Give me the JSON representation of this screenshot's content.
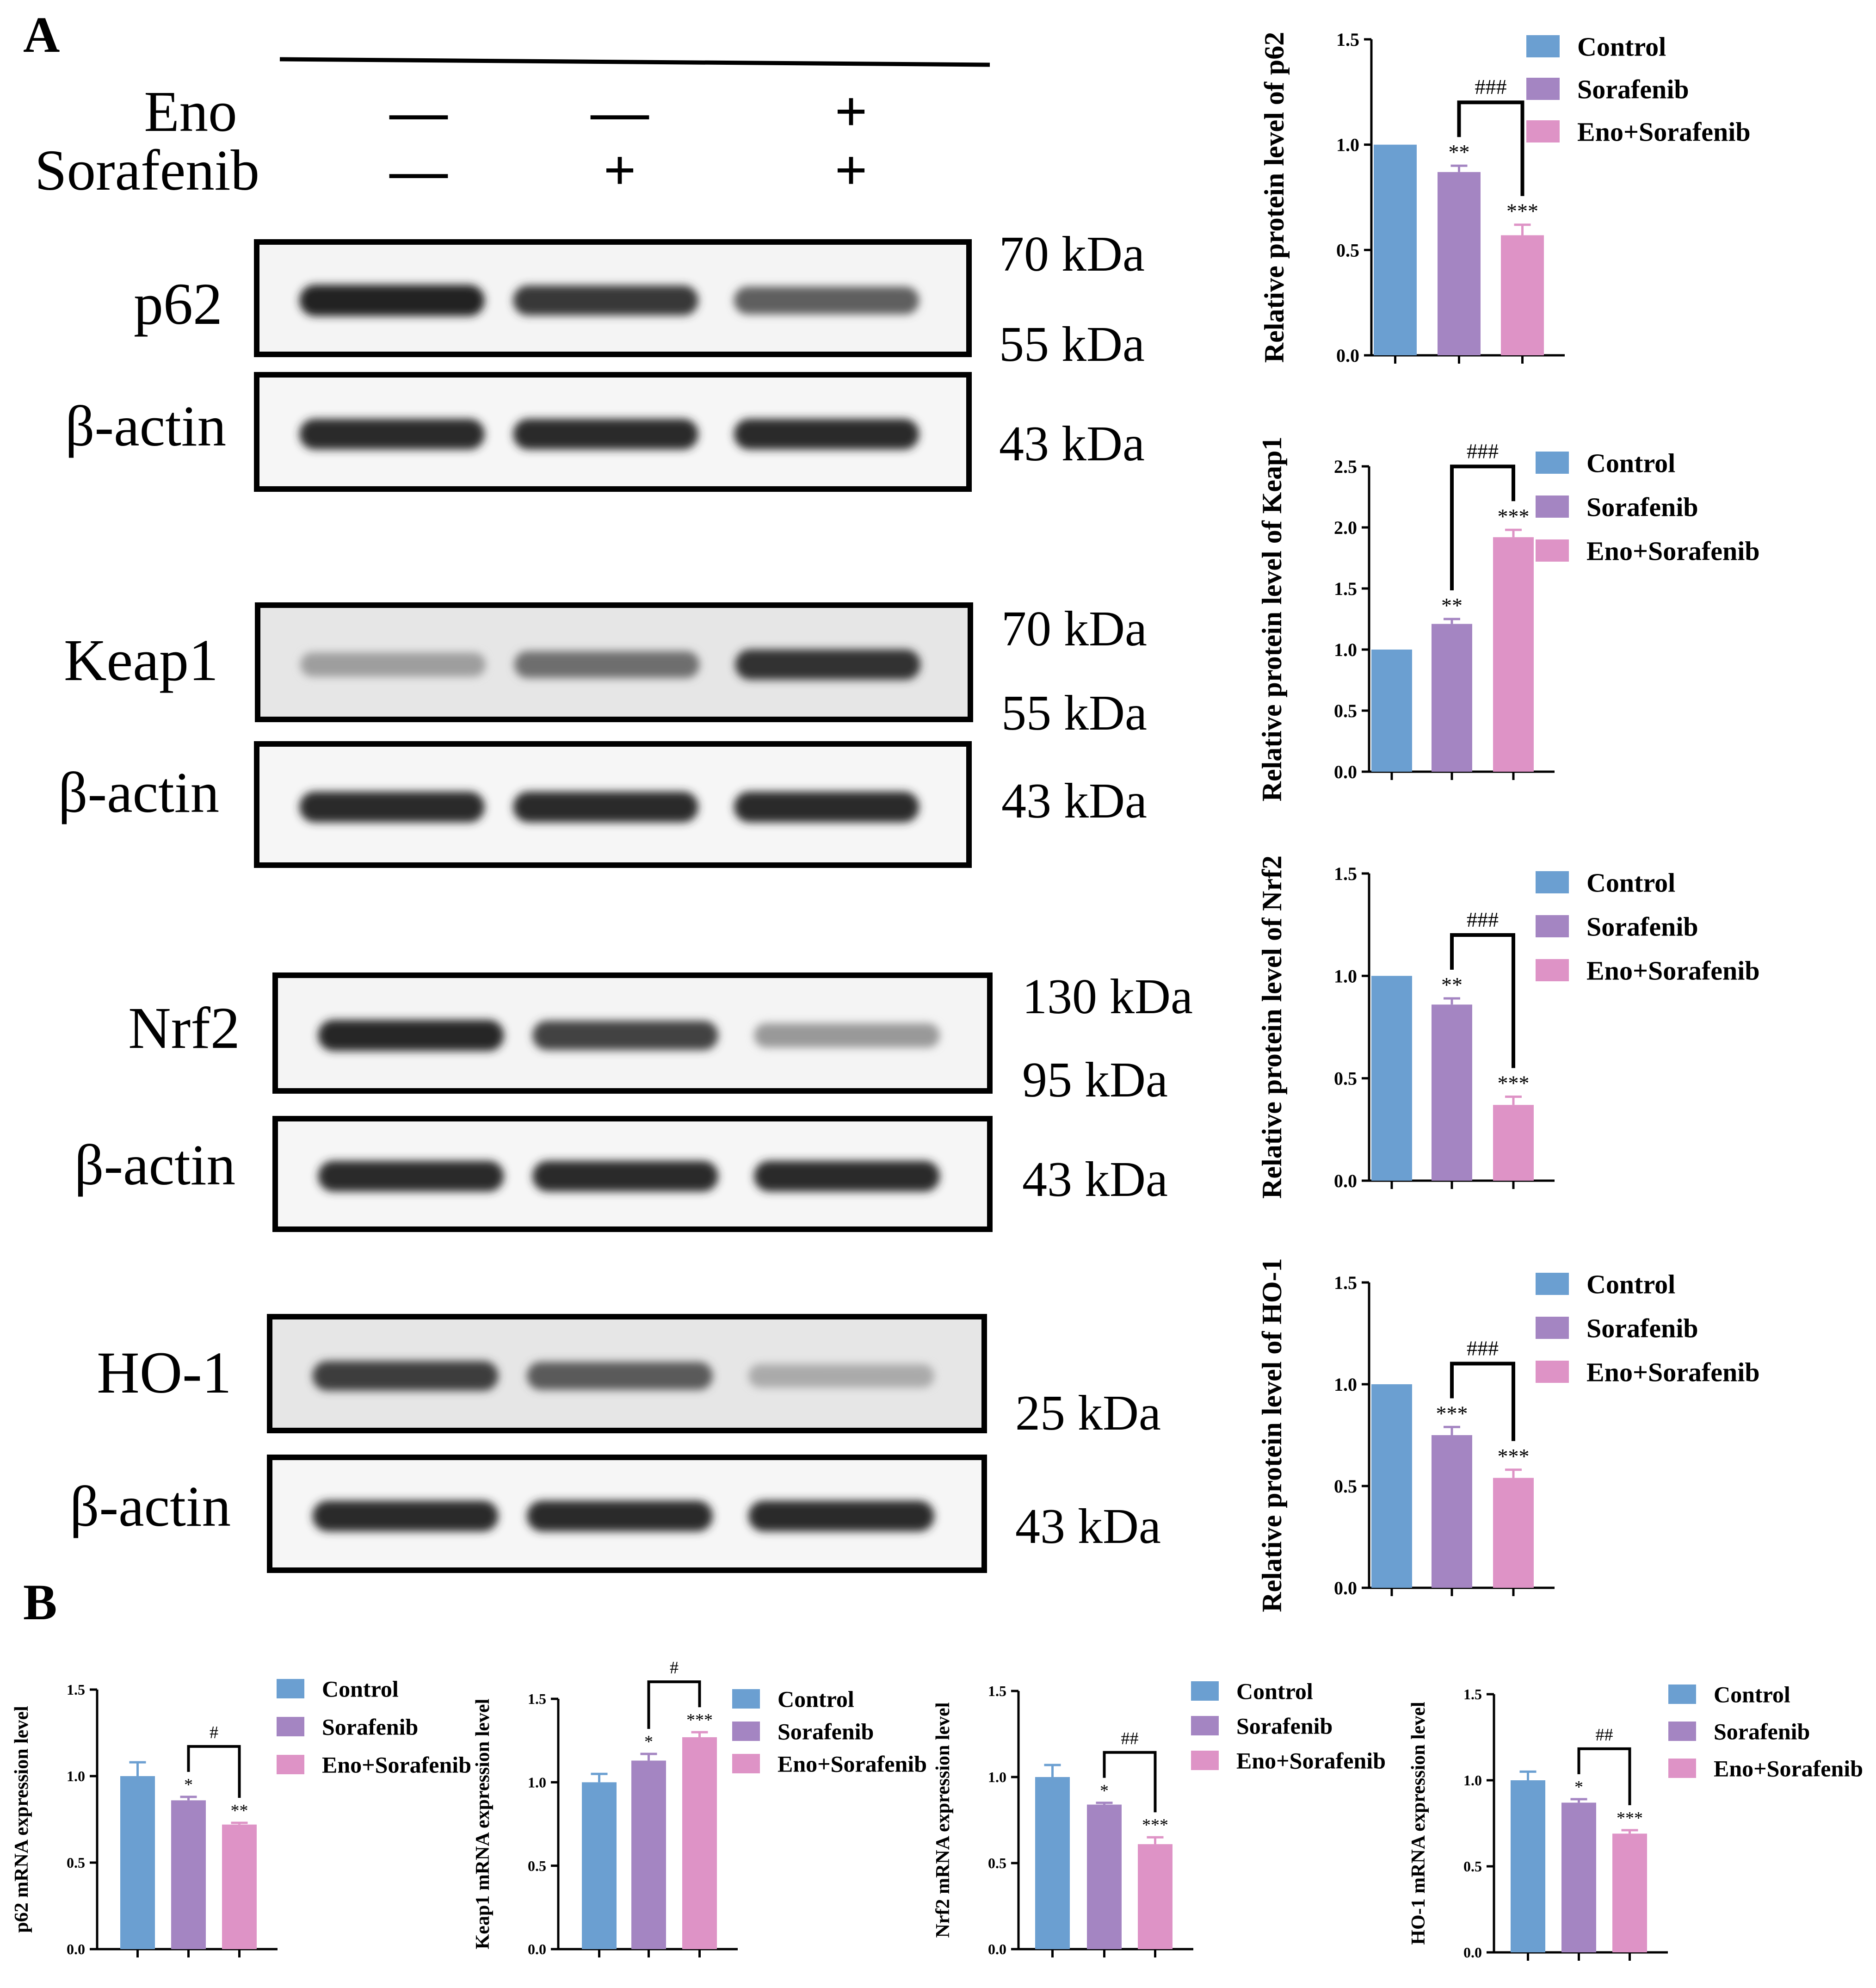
{
  "panels": {
    "A": "A",
    "B": "B"
  },
  "treatment": {
    "row_labels": [
      "Eno",
      "Sorafenib"
    ],
    "rows": [
      [
        "—",
        "—",
        "+"
      ],
      [
        "—",
        "+",
        "+"
      ]
    ]
  },
  "blots": [
    {
      "label": "p62",
      "markers": [
        "70 kDa",
        "55 kDa"
      ],
      "loading": "β-actin",
      "loading_marker": "43 kDa",
      "band_intensity": [
        0.92,
        0.82,
        0.66
      ]
    },
    {
      "label": "Keap1",
      "markers": [
        "70 kDa",
        "55 kDa"
      ],
      "loading": "β-actin",
      "loading_marker": "43 kDa",
      "band_intensity": [
        0.4,
        0.6,
        0.85
      ]
    },
    {
      "label": "Nrf2",
      "markers": [
        "130 kDa",
        "95 kDa"
      ],
      "loading": "β-actin",
      "loading_marker": "43 kDa",
      "band_intensity": [
        0.9,
        0.78,
        0.42
      ]
    },
    {
      "label": "HO-1",
      "markers": [
        "25 kDa"
      ],
      "loading": "β-actin",
      "loading_marker": "43 kDa",
      "band_intensity": [
        0.8,
        0.68,
        0.35
      ]
    }
  ],
  "legend": [
    "Control",
    "Sorafenib",
    "Eno+Sorafenib"
  ],
  "colors": {
    "Control": "#6b9fd1",
    "Sorafenib": "#a485c2",
    "Eno+Sorafenib": "#de93c6"
  },
  "chart_data": [
    {
      "type": "bar",
      "panel": "A",
      "categories": [
        "Control",
        "Sorafenib",
        "Eno+Sorafenib"
      ],
      "values": [
        1.0,
        0.87,
        0.57
      ],
      "errors": [
        0,
        0.03,
        0.05
      ],
      "stars": [
        "",
        "**",
        "***"
      ],
      "comparison": "###",
      "compare": [
        1,
        2
      ],
      "ylabel": "Relative protein level of p62",
      "ylim": [
        0,
        1.5
      ],
      "yticks": [
        "0.0",
        "0.5",
        "1.0",
        "1.5"
      ],
      "legend": "top-right"
    },
    {
      "type": "bar",
      "panel": "A",
      "categories": [
        "Control",
        "Sorafenib",
        "Eno+Sorafenib"
      ],
      "values": [
        1.0,
        1.21,
        1.92
      ],
      "errors": [
        0,
        0.04,
        0.06
      ],
      "stars": [
        "",
        "**",
        "***"
      ],
      "comparison": "###",
      "compare": [
        1,
        2
      ],
      "ylabel": "Relative protein level of Keap1",
      "ylim": [
        0,
        2.5
      ],
      "yticks": [
        "0.0",
        "0.5",
        "1.0",
        "1.5",
        "2.0",
        "2.5"
      ],
      "legend": "top-right"
    },
    {
      "type": "bar",
      "panel": "A",
      "categories": [
        "Control",
        "Sorafenib",
        "Eno+Sorafenib"
      ],
      "values": [
        1.0,
        0.86,
        0.37
      ],
      "errors": [
        0,
        0.03,
        0.04
      ],
      "stars": [
        "",
        "**",
        "***"
      ],
      "comparison": "###",
      "compare": [
        1,
        2
      ],
      "ylabel": "Relative protein level of Nrf2",
      "ylim": [
        0,
        1.5
      ],
      "yticks": [
        "0.0",
        "0.5",
        "1.0",
        "1.5"
      ],
      "legend": "top-right"
    },
    {
      "type": "bar",
      "panel": "A",
      "categories": [
        "Control",
        "Sorafenib",
        "Eno+Sorafenib"
      ],
      "values": [
        1.0,
        0.75,
        0.54
      ],
      "errors": [
        0,
        0.04,
        0.04
      ],
      "stars": [
        "",
        "***",
        "***"
      ],
      "comparison": "###",
      "compare": [
        1,
        2
      ],
      "ylabel": "Relative protein level of HO-1",
      "ylim": [
        0,
        1.5
      ],
      "yticks": [
        "0.0",
        "0.5",
        "1.0",
        "1.5"
      ],
      "legend": "top-right"
    },
    {
      "type": "bar",
      "panel": "B",
      "categories": [
        "Control",
        "Sorafenib",
        "Eno+Sorafenib"
      ],
      "values": [
        1.0,
        0.86,
        0.72
      ],
      "errors": [
        0.08,
        0.02,
        0.01
      ],
      "stars": [
        "",
        "*",
        "**"
      ],
      "comparison": "#",
      "compare": [
        1,
        2
      ],
      "ylabel": "p62 mRNA expression level",
      "ylim": [
        0,
        1.5
      ],
      "yticks": [
        "0.0",
        "0.5",
        "1.0",
        "1.5"
      ],
      "legend": "top-right"
    },
    {
      "type": "bar",
      "panel": "B",
      "categories": [
        "Control",
        "Sorafenib",
        "Eno+Sorafenib"
      ],
      "values": [
        1.0,
        1.13,
        1.27
      ],
      "errors": [
        0.05,
        0.04,
        0.03
      ],
      "stars": [
        "",
        "*",
        "***"
      ],
      "comparison": "#",
      "compare": [
        1,
        2
      ],
      "ylabel": "Keap1 mRNA expression level",
      "ylim": [
        0,
        1.5
      ],
      "yticks": [
        "0.0",
        "0.5",
        "1.0",
        "1.5"
      ],
      "legend": "top-right"
    },
    {
      "type": "bar",
      "panel": "B",
      "categories": [
        "Control",
        "Sorafenib",
        "Eno+Sorafenib"
      ],
      "values": [
        1.0,
        0.84,
        0.61
      ],
      "errors": [
        0.07,
        0.01,
        0.04
      ],
      "stars": [
        "",
        "*",
        "***"
      ],
      "comparison": "##",
      "compare": [
        1,
        2
      ],
      "ylabel": "Nrf2 mRNA expression level",
      "ylim": [
        0,
        1.5
      ],
      "yticks": [
        "0.0",
        "0.5",
        "1.0",
        "1.5"
      ],
      "legend": "top-right"
    },
    {
      "type": "bar",
      "panel": "B",
      "categories": [
        "Control",
        "Sorafenib",
        "Eno+Sorafenib"
      ],
      "values": [
        1.0,
        0.87,
        0.69
      ],
      "errors": [
        0.05,
        0.02,
        0.02
      ],
      "stars": [
        "",
        "*",
        "***"
      ],
      "comparison": "##",
      "compare": [
        1,
        2
      ],
      "ylabel": "HO-1 mRNA expression level",
      "ylim": [
        0,
        1.5
      ],
      "yticks": [
        "0.0",
        "0.5",
        "1.0",
        "1.5"
      ],
      "legend": "top-right"
    }
  ]
}
